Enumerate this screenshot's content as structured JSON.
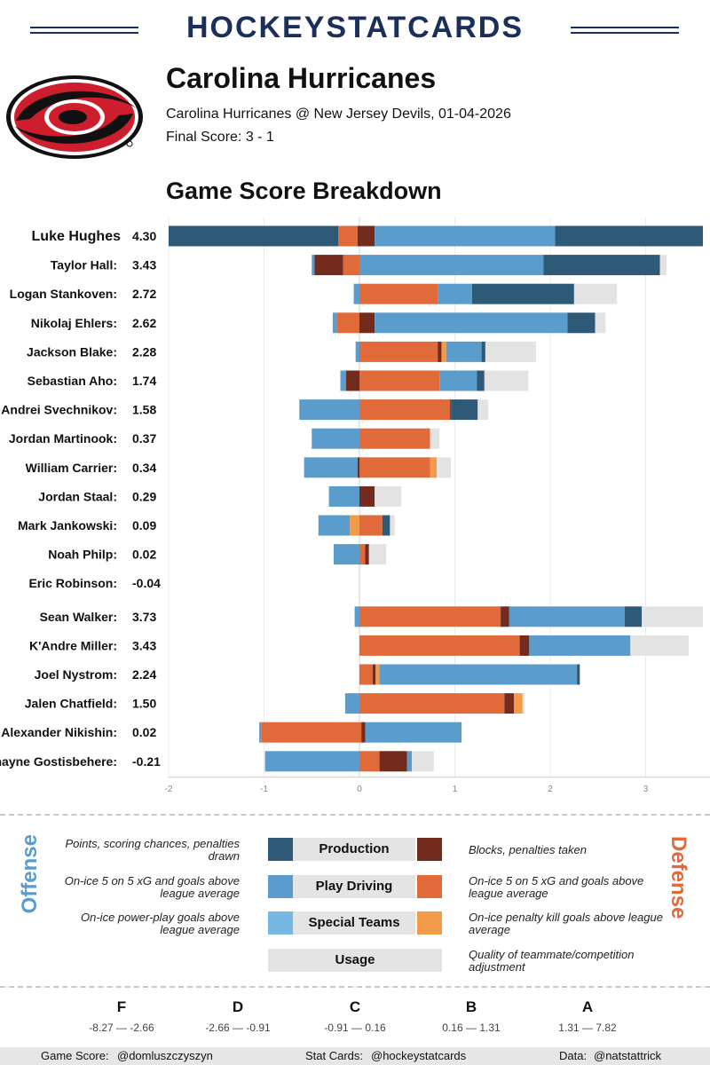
{
  "brand": "HOCKEYSTATCARDS",
  "team": {
    "name": "Carolina Hurricanes",
    "game": "Carolina Hurricanes @ New Jersey Devils, 01-04-2026",
    "final_score": "Final Score: 3 - 1"
  },
  "section_title": "Game Score Breakdown",
  "colors": {
    "production_off": "#2f5a77",
    "play_off": "#5a9ccc",
    "special_off": "#76b8e4",
    "production_def": "#732b1d",
    "play_def": "#e06a3a",
    "special_def": "#f09a4a",
    "usage": "#e3e3e3"
  },
  "chart_data": {
    "type": "bar",
    "orientation": "horizontal-stacked",
    "xlim": [
      -2,
      3.6
    ],
    "xticks": [
      "-2",
      "-1",
      "0",
      "1",
      "2",
      "3"
    ],
    "xtick_values": [
      -2,
      -1,
      0,
      1,
      2,
      3
    ],
    "players": [
      {
        "name": "Luke Hughes",
        "score": "4.30",
        "highlight": true,
        "segments": [
          [
            "production_off",
            -2.0,
            -0.22
          ],
          [
            "play_def",
            -0.22,
            -0.02
          ],
          [
            "production_def",
            -0.02,
            0.16
          ],
          [
            "play_off",
            0.16,
            2.05
          ],
          [
            "production_off",
            2.05,
            3.6
          ]
        ]
      },
      {
        "name": "Taylor Hall",
        "score": "3.43",
        "segments": [
          [
            "play_off",
            -0.5,
            -0.47
          ],
          [
            "production_def",
            -0.47,
            -0.17
          ],
          [
            "play_def",
            -0.17,
            0.0
          ],
          [
            "play_off",
            0.0,
            1.93
          ],
          [
            "production_off",
            1.93,
            3.15
          ],
          [
            "usage",
            3.15,
            3.22
          ]
        ]
      },
      {
        "name": "Logan Stankoven",
        "score": "2.72",
        "segments": [
          [
            "play_off",
            -0.06,
            0.0
          ],
          [
            "play_def",
            0.0,
            0.82
          ],
          [
            "play_off",
            0.82,
            1.18
          ],
          [
            "production_off",
            1.18,
            2.25
          ],
          [
            "usage",
            2.25,
            2.7
          ]
        ]
      },
      {
        "name": "Nikolaj Ehlers",
        "score": "2.62",
        "segments": [
          [
            "play_off",
            -0.28,
            -0.24
          ],
          [
            "play_def",
            -0.24,
            0.0
          ],
          [
            "production_def",
            0.0,
            0.16
          ],
          [
            "play_off",
            0.16,
            2.18
          ],
          [
            "production_off",
            2.18,
            2.47
          ],
          [
            "usage",
            2.47,
            2.58
          ]
        ]
      },
      {
        "name": "Jackson Blake",
        "score": "2.28",
        "segments": [
          [
            "play_off",
            -0.04,
            0.0
          ],
          [
            "play_def",
            0.0,
            0.82
          ],
          [
            "production_def",
            0.82,
            0.86
          ],
          [
            "special_def",
            0.86,
            0.91
          ],
          [
            "play_off",
            0.91,
            1.28
          ],
          [
            "production_off",
            1.28,
            1.32
          ],
          [
            "usage",
            1.32,
            1.85
          ]
        ]
      },
      {
        "name": "Sebastian Aho",
        "score": "1.74",
        "segments": [
          [
            "play_off",
            -0.2,
            -0.14
          ],
          [
            "production_def",
            -0.14,
            0.0
          ],
          [
            "play_def",
            0.0,
            0.84
          ],
          [
            "play_off",
            0.84,
            1.23
          ],
          [
            "production_off",
            1.23,
            1.31
          ],
          [
            "usage",
            1.31,
            1.77
          ]
        ]
      },
      {
        "name": "Andrei Svechnikov",
        "score": "1.58",
        "segments": [
          [
            "play_off",
            -0.63,
            0.0
          ],
          [
            "play_def",
            0.0,
            0.95
          ],
          [
            "production_def",
            0.95,
            0.96
          ],
          [
            "production_off",
            0.96,
            1.24
          ],
          [
            "usage",
            1.24,
            1.35
          ]
        ]
      },
      {
        "name": "Jordan Martinook",
        "score": "0.37",
        "segments": [
          [
            "play_off",
            -0.5,
            0.0
          ],
          [
            "play_def",
            0.0,
            0.74
          ],
          [
            "usage",
            0.74,
            0.84
          ]
        ]
      },
      {
        "name": "William Carrier",
        "score": "0.34",
        "segments": [
          [
            "play_off",
            -0.58,
            -0.02
          ],
          [
            "production_def",
            -0.02,
            0.0
          ],
          [
            "play_def",
            0.0,
            0.74
          ],
          [
            "special_def",
            0.74,
            0.81
          ],
          [
            "usage",
            0.81,
            0.96
          ]
        ]
      },
      {
        "name": "Jordan Staal",
        "score": "0.29",
        "segments": [
          [
            "play_off",
            -0.32,
            0.0
          ],
          [
            "production_def",
            0.0,
            0.16
          ],
          [
            "usage",
            0.16,
            0.44
          ]
        ]
      },
      {
        "name": "Mark Jankowski",
        "score": "0.09",
        "segments": [
          [
            "play_off",
            -0.43,
            -0.1
          ],
          [
            "special_def",
            -0.1,
            0.0
          ],
          [
            "play_def",
            0.0,
            0.24
          ],
          [
            "production_off",
            0.24,
            0.32
          ],
          [
            "usage",
            0.32,
            0.37
          ]
        ]
      },
      {
        "name": "Noah Philp",
        "score": "0.02",
        "segments": [
          [
            "play_off",
            -0.27,
            0.0
          ],
          [
            "play_def",
            0.0,
            0.06
          ],
          [
            "production_def",
            0.06,
            0.1
          ],
          [
            "usage",
            0.1,
            0.28
          ]
        ]
      },
      {
        "name": "Eric Robinson",
        "score": "-0.04",
        "segments": []
      },
      {
        "name": "Sean Walker",
        "score": "3.73",
        "gap_before": true,
        "segments": [
          [
            "play_off",
            -0.05,
            0.0
          ],
          [
            "play_def",
            0.0,
            1.48
          ],
          [
            "production_def",
            1.48,
            1.57
          ],
          [
            "play_off",
            1.57,
            2.78
          ],
          [
            "production_off",
            2.78,
            2.96
          ],
          [
            "usage",
            2.96,
            3.6
          ]
        ]
      },
      {
        "name": "K'Andre Miller",
        "score": "3.43",
        "segments": [
          [
            "play_def",
            0.0,
            1.68
          ],
          [
            "production_def",
            1.68,
            1.78
          ],
          [
            "play_off",
            1.78,
            2.84
          ],
          [
            "usage",
            2.84,
            3.45
          ]
        ]
      },
      {
        "name": "Joel Nystrom",
        "score": "2.24",
        "segments": [
          [
            "play_def",
            0.0,
            0.14
          ],
          [
            "production_def",
            0.14,
            0.17
          ],
          [
            "special_def",
            0.17,
            0.21
          ],
          [
            "play_off",
            0.21,
            2.28
          ],
          [
            "production_off",
            2.28,
            2.31
          ]
        ]
      },
      {
        "name": "Jalen Chatfield",
        "score": "1.50",
        "segments": [
          [
            "play_off",
            -0.15,
            0.0
          ],
          [
            "play_def",
            0.0,
            1.52
          ],
          [
            "production_def",
            1.52,
            1.62
          ],
          [
            "special_def",
            1.62,
            1.71
          ],
          [
            "usage",
            1.71,
            1.73
          ]
        ]
      },
      {
        "name": "Alexander Nikishin",
        "score": "0.02",
        "segments": [
          [
            "play_off",
            -1.05,
            -1.03
          ],
          [
            "play_def",
            -1.03,
            0.02
          ],
          [
            "production_def",
            0.02,
            0.06
          ],
          [
            "play_off",
            0.06,
            1.07
          ]
        ]
      },
      {
        "name": "Shayne Gostisbehere",
        "score": "-0.21",
        "segments": [
          [
            "play_off",
            -0.99,
            0.0
          ],
          [
            "play_def",
            0.0,
            0.21
          ],
          [
            "production_def",
            0.21,
            0.5
          ],
          [
            "play_off",
            0.5,
            0.55
          ],
          [
            "usage",
            0.55,
            0.78
          ]
        ]
      }
    ]
  },
  "legend": {
    "offense_label": "Offense",
    "defense_label": "Defense",
    "rows": [
      {
        "category": "Production",
        "left_desc": "Points, scoring chances, penalties drawn",
        "right_desc": "Blocks, penalties taken",
        "left_color": "production_off",
        "right_color": "production_def"
      },
      {
        "category": "Play Driving",
        "left_desc": "On-ice 5 on 5 xG and goals above league average",
        "right_desc": "On-ice 5 on 5 xG and goals above league average",
        "left_color": "play_off",
        "right_color": "play_def"
      },
      {
        "category": "Special Teams",
        "left_desc": "On-ice power-play goals above league average",
        "right_desc": "On-ice penalty kill goals above league average",
        "left_color": "special_off",
        "right_color": "special_def"
      },
      {
        "category": "Usage",
        "left_desc": "",
        "right_desc": "Quality of teammate/competition adjustment"
      }
    ]
  },
  "grades": [
    {
      "letter": "F",
      "range": "-8.27 — -2.66"
    },
    {
      "letter": "D",
      "range": "-2.66 — -0.91"
    },
    {
      "letter": "C",
      "range": "-0.91 — 0.16"
    },
    {
      "letter": "B",
      "range": "0.16 — 1.31"
    },
    {
      "letter": "A",
      "range": "1.31 — 7.82"
    }
  ],
  "footer": {
    "game_score_label": "Game Score:",
    "game_score_handle": "@domluszczyszyn",
    "stat_cards_label": "Stat Cards:",
    "stat_cards_handle": "@hockeystatcards",
    "data_label": "Data:",
    "data_handle": "@natstattrick"
  }
}
